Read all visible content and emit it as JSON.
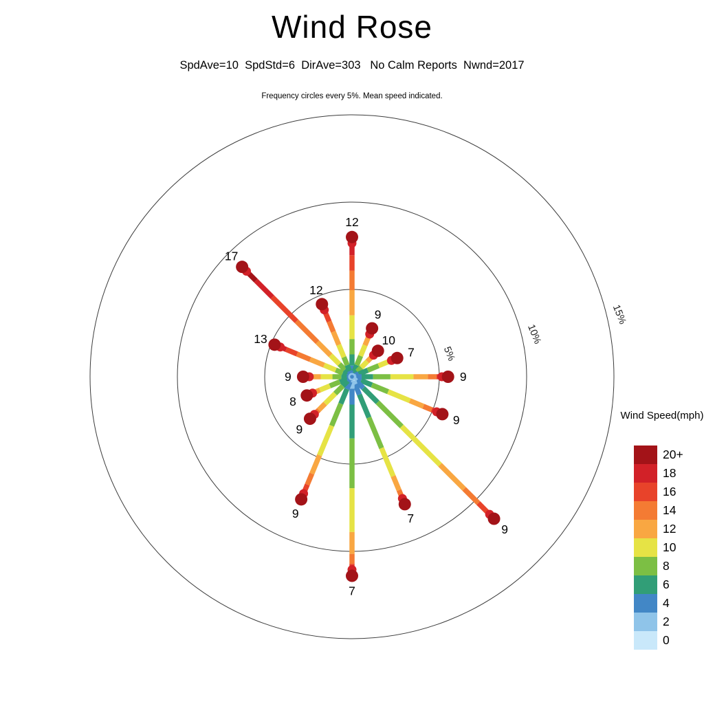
{
  "title": "Wind Rose",
  "stats_line": "SpdAve=10  SpdStd=6  DirAve=303   No Calm Reports  Nwnd=2017",
  "caption": "Frequency circles every 5%. Mean speed indicated.",
  "legend": {
    "title": "Wind Speed(mph)",
    "entries": [
      {
        "label": "20+",
        "color": "#A31318"
      },
      {
        "label": "18",
        "color": "#D22128"
      },
      {
        "label": "16",
        "color": "#E8432A"
      },
      {
        "label": "14",
        "color": "#F47B33"
      },
      {
        "label": "12",
        "color": "#F9A742"
      },
      {
        "label": "10",
        "color": "#E6E345"
      },
      {
        "label": "8",
        "color": "#7CBF44"
      },
      {
        "label": "6",
        "color": "#319E77"
      },
      {
        "label": "4",
        "color": "#4287C6"
      },
      {
        "label": "2",
        "color": "#8FC4E9"
      },
      {
        "label": "0",
        "color": "#C9E8FA"
      }
    ]
  },
  "chart_data": {
    "type": "wind-rose",
    "title": "Wind Rose",
    "stats": {
      "SpdAve": 10,
      "SpdStd": 6,
      "DirAve": 303,
      "calm_reports": "No Calm Reports",
      "Nwnd": 2017
    },
    "frequency_ring_step_pct": 5,
    "ring_percent": [
      5,
      10,
      15
    ],
    "ring_labels": [
      "5%",
      "10%",
      "15%"
    ],
    "speed_bins_mph": [
      "0",
      "2",
      "4",
      "6",
      "8",
      "10",
      "12",
      "14",
      "16",
      "18",
      "20+"
    ],
    "spokes": [
      {
        "dir": "N",
        "azimuth_deg": 0,
        "frequency_pct": 8.0,
        "mean_speed": 12,
        "profile": [
          0.01,
          0.02,
          0.05,
          0.08,
          0.11,
          0.17,
          0.18,
          0.14,
          0.11,
          0.07,
          0.06
        ]
      },
      {
        "dir": "NNE",
        "azimuth_deg": 22.5,
        "frequency_pct": 3.0,
        "mean_speed": 9,
        "profile": [
          0.01,
          0.03,
          0.07,
          0.13,
          0.19,
          0.22,
          0.15,
          0.09,
          0.06,
          0.03,
          0.02
        ]
      },
      {
        "dir": "NE",
        "azimuth_deg": 45,
        "frequency_pct": 2.1,
        "mean_speed": 10,
        "profile": [
          0.01,
          0.02,
          0.06,
          0.11,
          0.16,
          0.23,
          0.17,
          0.11,
          0.07,
          0.04,
          0.02
        ]
      },
      {
        "dir": "ENE",
        "azimuth_deg": 67.5,
        "frequency_pct": 2.8,
        "mean_speed": 7,
        "profile": [
          0.02,
          0.04,
          0.09,
          0.2,
          0.24,
          0.2,
          0.1,
          0.05,
          0.03,
          0.02,
          0.01
        ]
      },
      {
        "dir": "E",
        "azimuth_deg": 90,
        "frequency_pct": 5.5,
        "mean_speed": 9,
        "profile": [
          0.01,
          0.03,
          0.06,
          0.12,
          0.18,
          0.24,
          0.15,
          0.09,
          0.06,
          0.04,
          0.02
        ]
      },
      {
        "dir": "ESE",
        "azimuth_deg": 112.5,
        "frequency_pct": 5.6,
        "mean_speed": 9,
        "profile": [
          0.01,
          0.03,
          0.06,
          0.12,
          0.18,
          0.24,
          0.15,
          0.09,
          0.06,
          0.04,
          0.02
        ]
      },
      {
        "dir": "SE",
        "azimuth_deg": 135,
        "frequency_pct": 11.5,
        "mean_speed": 9,
        "profile": [
          0.01,
          0.02,
          0.05,
          0.1,
          0.17,
          0.27,
          0.17,
          0.1,
          0.06,
          0.03,
          0.02
        ]
      },
      {
        "dir": "SSE",
        "azimuth_deg": 157.5,
        "frequency_pct": 7.9,
        "mean_speed": 7,
        "profile": [
          0.02,
          0.04,
          0.08,
          0.18,
          0.24,
          0.22,
          0.11,
          0.05,
          0.03,
          0.02,
          0.01
        ]
      },
      {
        "dir": "S",
        "azimuth_deg": 180,
        "frequency_pct": 11.4,
        "mean_speed": 7,
        "profile": [
          0.02,
          0.04,
          0.08,
          0.17,
          0.25,
          0.22,
          0.11,
          0.05,
          0.03,
          0.02,
          0.01
        ]
      },
      {
        "dir": "SSW",
        "azimuth_deg": 202.5,
        "frequency_pct": 7.6,
        "mean_speed": 9,
        "profile": [
          0.01,
          0.03,
          0.06,
          0.12,
          0.18,
          0.24,
          0.15,
          0.09,
          0.06,
          0.04,
          0.02
        ]
      },
      {
        "dir": "SW",
        "azimuth_deg": 225,
        "frequency_pct": 3.4,
        "mean_speed": 9,
        "profile": [
          0.01,
          0.03,
          0.06,
          0.12,
          0.18,
          0.24,
          0.15,
          0.09,
          0.06,
          0.04,
          0.02
        ]
      },
      {
        "dir": "WSW",
        "azimuth_deg": 247.5,
        "frequency_pct": 2.8,
        "mean_speed": 8,
        "profile": [
          0.02,
          0.03,
          0.07,
          0.15,
          0.22,
          0.22,
          0.13,
          0.08,
          0.04,
          0.02,
          0.02
        ]
      },
      {
        "dir": "W",
        "azimuth_deg": 270,
        "frequency_pct": 2.8,
        "mean_speed": 9,
        "profile": [
          0.01,
          0.03,
          0.06,
          0.12,
          0.18,
          0.24,
          0.15,
          0.09,
          0.06,
          0.04,
          0.02
        ]
      },
      {
        "dir": "WNW",
        "azimuth_deg": 292.5,
        "frequency_pct": 4.8,
        "mean_speed": 13,
        "profile": [
          0.01,
          0.02,
          0.03,
          0.06,
          0.09,
          0.15,
          0.18,
          0.17,
          0.14,
          0.09,
          0.06
        ]
      },
      {
        "dir": "NW",
        "azimuth_deg": 315,
        "frequency_pct": 8.9,
        "mean_speed": 17,
        "profile": [
          0.005,
          0.01,
          0.02,
          0.03,
          0.05,
          0.08,
          0.12,
          0.19,
          0.22,
          0.15,
          0.115
        ]
      },
      {
        "dir": "NNW",
        "azimuth_deg": 337.5,
        "frequency_pct": 4.5,
        "mean_speed": 12,
        "profile": [
          0.01,
          0.02,
          0.05,
          0.08,
          0.11,
          0.17,
          0.18,
          0.14,
          0.11,
          0.07,
          0.06
        ]
      }
    ]
  }
}
